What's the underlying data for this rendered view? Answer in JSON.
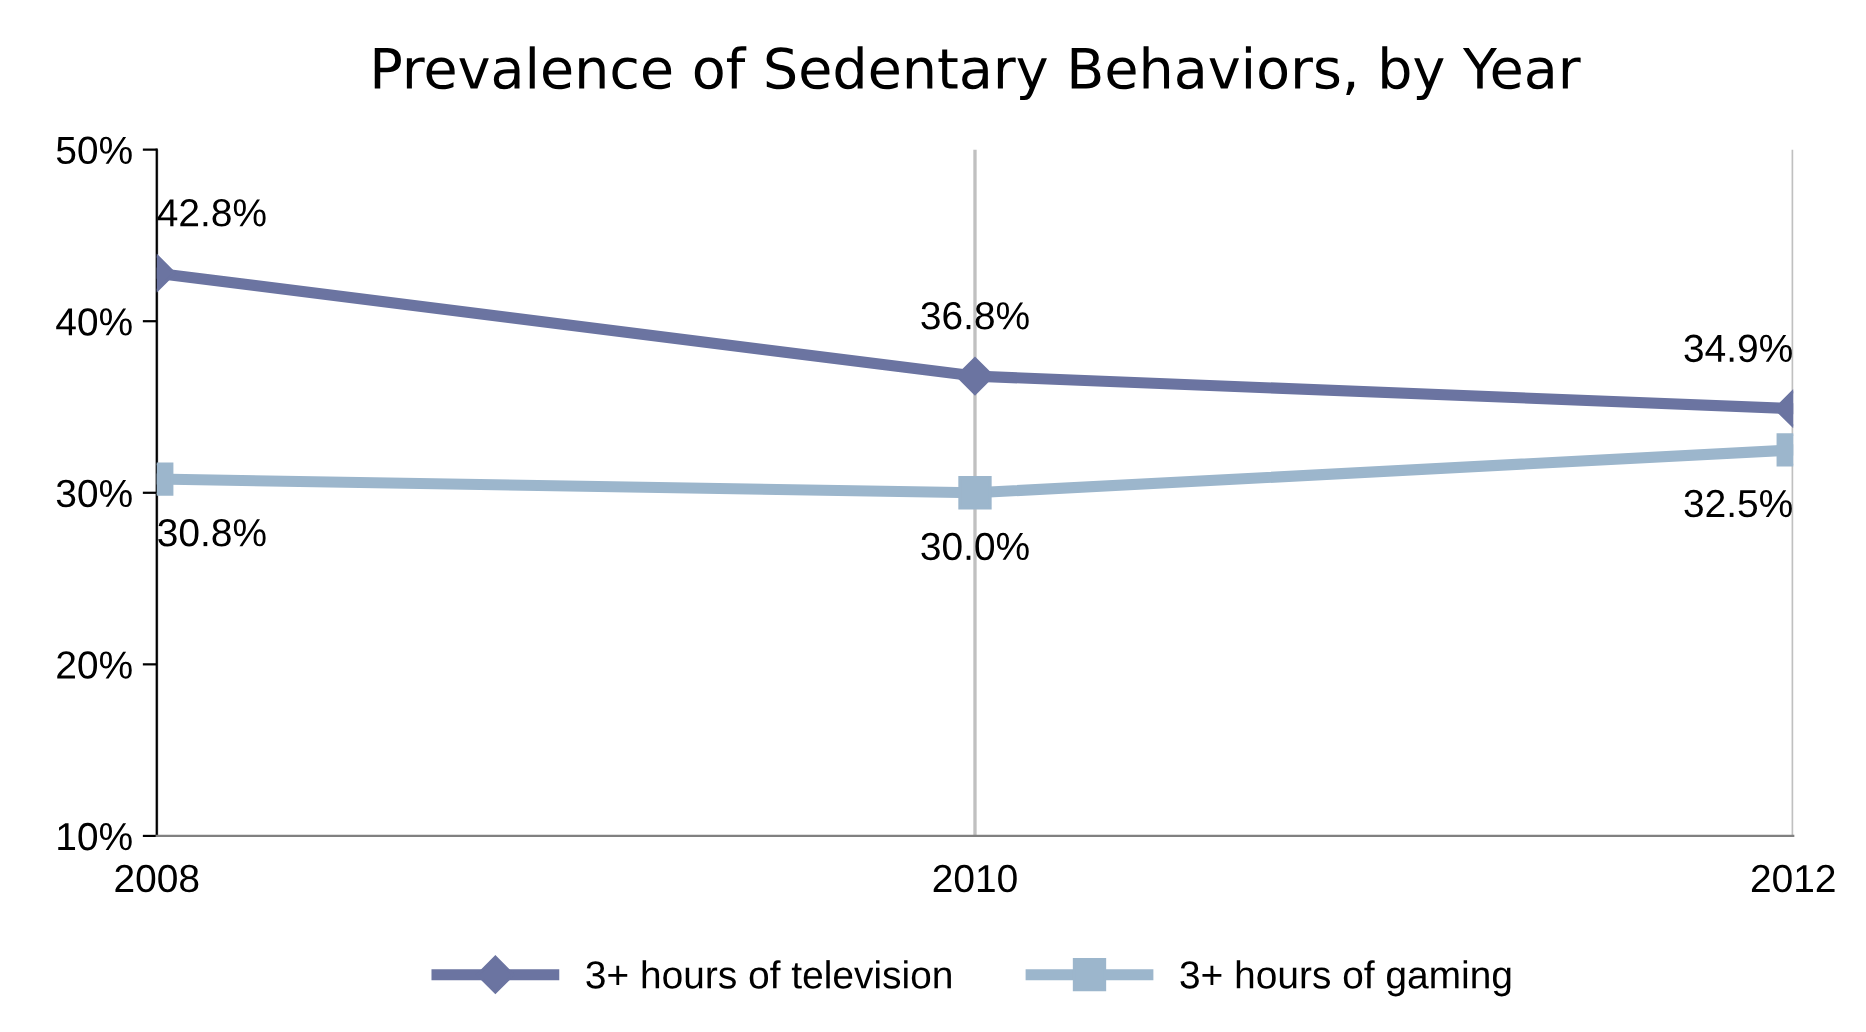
{
  "chart_data": {
    "type": "line",
    "title": "Prevalence of Sedentary Behaviors, by Year",
    "categories": [
      "2008",
      "2010",
      "2012"
    ],
    "series": [
      {
        "name": "3+ hours of television",
        "color": "#6b74a1",
        "marker": "diamond",
        "values": [
          42.8,
          36.8,
          34.9
        ],
        "value_labels": [
          "42.8%",
          "36.8%",
          "34.9%"
        ]
      },
      {
        "name": "3+ hours of gaming",
        "color": "#9cb6cc",
        "marker": "square",
        "values": [
          30.8,
          30.0,
          32.5
        ],
        "value_labels": [
          "30.8%",
          "30.0%",
          "32.5%"
        ]
      }
    ],
    "ylim": [
      10,
      50
    ],
    "yticks": [
      {
        "value": 10,
        "label": "10%"
      },
      {
        "value": 20,
        "label": "20%"
      },
      {
        "value": 30,
        "label": "30%"
      },
      {
        "value": 40,
        "label": "40%"
      },
      {
        "value": 50,
        "label": "50%"
      }
    ],
    "grid": "x",
    "legend": "bottom",
    "line_style": "solid"
  }
}
